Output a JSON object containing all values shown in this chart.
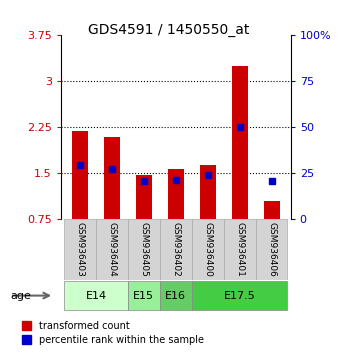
{
  "title": "GDS4591 / 1450550_at",
  "samples": [
    "GSM936403",
    "GSM936404",
    "GSM936405",
    "GSM936402",
    "GSM936400",
    "GSM936401",
    "GSM936406"
  ],
  "red_values": [
    2.2,
    2.1,
    1.47,
    1.58,
    1.63,
    3.25,
    1.05
  ],
  "blue_values_left": [
    1.63,
    1.58,
    1.38,
    1.4,
    1.47,
    2.25,
    1.38
  ],
  "ylim_left": [
    0.75,
    3.75
  ],
  "ylim_right": [
    0,
    100
  ],
  "yticks_left": [
    0.75,
    1.5,
    2.25,
    3.0,
    3.75
  ],
  "ytick_labels_left": [
    "0.75",
    "1.5",
    "2.25",
    "3",
    "3.75"
  ],
  "yticks_right": [
    0,
    25,
    50,
    75,
    100
  ],
  "ytick_labels_right": [
    "0",
    "25",
    "50",
    "75",
    "100%"
  ],
  "hlines": [
    1.5,
    2.25,
    3.0
  ],
  "bar_bottom": 0.75,
  "red_color": "#cc0000",
  "blue_color": "#0000cc",
  "age_data": [
    {
      "label": "E14",
      "start": 0,
      "end": 2,
      "color": "#ccffcc"
    },
    {
      "label": "E15",
      "start": 2,
      "end": 3,
      "color": "#99ee99"
    },
    {
      "label": "E16",
      "start": 3,
      "end": 4,
      "color": "#66cc66"
    },
    {
      "label": "E17.5",
      "start": 4,
      "end": 7,
      "color": "#44cc44"
    }
  ],
  "legend_red": "transformed count",
  "legend_blue": "percentile rank within the sample",
  "red_color_label": "#cc0000",
  "right_axis_color": "#0000cc",
  "bar_width": 0.5
}
